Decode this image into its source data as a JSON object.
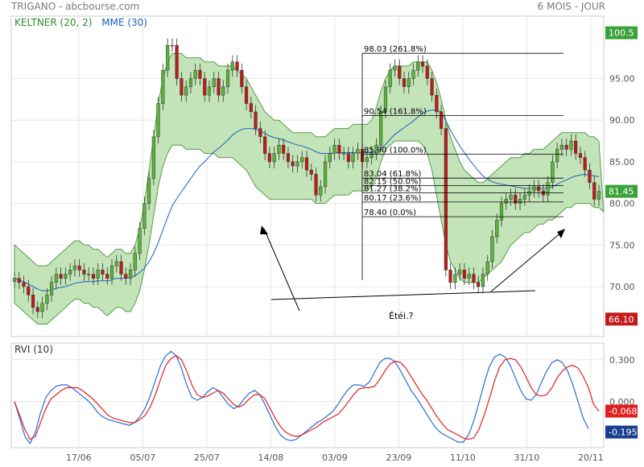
{
  "header": {
    "title": "TRIGANO - abcbourse.com",
    "period": "6 MOIS - JOUR"
  },
  "legend": {
    "keltner": "KELTNER (20, 2)",
    "mme": "MME (30)",
    "keltner_color": "#2e8b2e",
    "mme_color": "#1f5fbf"
  },
  "colors": {
    "band_fill": "#b9dfac",
    "band_edge": "#5a9a4a",
    "candle_up": "#5ab53a",
    "candle_down": "#c21a1a",
    "grid": "#e6e6e6",
    "rvi_blue": "#2a6bd6",
    "rvi_red": "#e02020"
  },
  "price_axis": {
    "ticks": [
      "100.5",
      "95.00",
      "90.00",
      "85.00",
      "81.45",
      "80.00",
      "75.00",
      "70.00",
      "66.10"
    ],
    "tick_values": [
      95,
      90,
      85,
      80,
      75,
      70
    ],
    "ylim": [
      64.0,
      102.5
    ],
    "high_label": "100.5",
    "last_label": "81.45",
    "low_label": "66.10"
  },
  "x_axis": {
    "labels": [
      "17/06",
      "05/07",
      "25/07",
      "14/08",
      "03/09",
      "23/09",
      "11/10",
      "31/10",
      "20/11"
    ]
  },
  "fibonacci": {
    "levels": [
      {
        "label": "98.03",
        "pct": "(261.8%)",
        "value": 98.03
      },
      {
        "label": "90.54",
        "pct": "(161.8%)",
        "value": 90.54
      },
      {
        "label": "85.90",
        "pct": "(100.0%)",
        "value": 85.9
      },
      {
        "label": "83.04",
        "pct": "(61.8%)",
        "value": 83.04
      },
      {
        "label": "82.15",
        "pct": "(50.0%)",
        "value": 82.15
      },
      {
        "label": "81.27",
        "pct": "(38.2%)",
        "value": 81.27
      },
      {
        "label": "80.17",
        "pct": "(23.6%)",
        "value": 80.17
      },
      {
        "label": "78.40",
        "pct": "(0.0%)",
        "value": 78.4
      }
    ]
  },
  "annotation": {
    "text": "Étéi.?"
  },
  "rvi": {
    "title": "RVI (10)",
    "ticks": [
      "0.300",
      "0.000"
    ],
    "tick_values": [
      0.3,
      0.0
    ],
    "last_red": "-0.068",
    "last_blue": "-0.195",
    "ylim": [
      -0.33,
      0.42
    ]
  },
  "chart_data": {
    "type": "candlestick",
    "title": "TRIGANO - abcbourse.com",
    "period": "6 MOIS - JOUR",
    "x_labels": [
      "17/06",
      "05/07",
      "25/07",
      "14/08",
      "03/09",
      "23/09",
      "11/10",
      "31/10",
      "20/11"
    ],
    "close": [
      71,
      70.5,
      70,
      69,
      67.5,
      67,
      68,
      69,
      70.5,
      71.5,
      71,
      71.5,
      72,
      72.5,
      72,
      71.5,
      71.5,
      71,
      72,
      71.5,
      71,
      72.5,
      73,
      71.5,
      71,
      72,
      74,
      77,
      80,
      83,
      88,
      92,
      96,
      99,
      99,
      95,
      93,
      94,
      95,
      96,
      95,
      93,
      94,
      95,
      93,
      94,
      96,
      97,
      96,
      94,
      92,
      91,
      89,
      88,
      86,
      85,
      86,
      87,
      86,
      85,
      84.5,
      85,
      85.5,
      84,
      83.5,
      81,
      82,
      85,
      86,
      87,
      86,
      86,
      85,
      86,
      86.5,
      85,
      85.5,
      86,
      87,
      91,
      94,
      96,
      96.5,
      95,
      94,
      95,
      96,
      97,
      96.5,
      95,
      93,
      91,
      89,
      72,
      70.5,
      71.5,
      72,
      71,
      71.5,
      70.5,
      70,
      71.5,
      73,
      76,
      78,
      80,
      80.5,
      81,
      80,
      80.5,
      81,
      81.5,
      82,
      81.5,
      81,
      82.5,
      85,
      86.5,
      87,
      86.5,
      87.5,
      86,
      85.5,
      84,
      82.5,
      80.5,
      81.45
    ],
    "keltner_upper": [
      75,
      74.5,
      74,
      73.5,
      73,
      72.5,
      72.5,
      72.5,
      73,
      73.5,
      74,
      74.5,
      75,
      75.5,
      75.5,
      75,
      75,
      74.5,
      74.5,
      74,
      73.5,
      74,
      74.5,
      74.5,
      74,
      74,
      75,
      77,
      80,
      84,
      88,
      92,
      95,
      97,
      98,
      98,
      98,
      97.5,
      97.5,
      97.5,
      97.5,
      97,
      97,
      97,
      96.5,
      96.5,
      96.5,
      96.5,
      96,
      95.5,
      95,
      94,
      93,
      92,
      91,
      90.5,
      90,
      90,
      89.5,
      89,
      88.5,
      88.5,
      88.5,
      88.5,
      88.5,
      88,
      88,
      88,
      88.5,
      89,
      89,
      89,
      89,
      89.5,
      89.5,
      89.5,
      89.5,
      90,
      91.5,
      93.5,
      95,
      96,
      96.5,
      96.5,
      96.5,
      96.5,
      97,
      97,
      97,
      97,
      96,
      94.5,
      92.5,
      90,
      88,
      86.5,
      85,
      84,
      83.5,
      83,
      82.5,
      82.5,
      83,
      83.5,
      84,
      84.5,
      85,
      85.5,
      85.5,
      85.5,
      86,
      86,
      86.5,
      86.5,
      86.5,
      87,
      87.5,
      88,
      88.5,
      88.5,
      88.5,
      88.5,
      88.5,
      88.5,
      88,
      88,
      87.5
    ],
    "keltner_lower": [
      68,
      67.5,
      67,
      66.5,
      66,
      65.5,
      65.5,
      65.5,
      66,
      66.5,
      67,
      67.5,
      68,
      68.5,
      68.5,
      68,
      68,
      67.5,
      67.5,
      67,
      66.5,
      67,
      67.5,
      67.5,
      67,
      67,
      68,
      69.5,
      72,
      75,
      78.5,
      82,
      84.5,
      86,
      87,
      87,
      87,
      86.5,
      86.5,
      86.5,
      86.5,
      86,
      86,
      86,
      85.5,
      85.5,
      85.5,
      85.5,
      85,
      84.5,
      84,
      83,
      82,
      81.5,
      81,
      80.5,
      80.5,
      80.5,
      80.5,
      80.5,
      80.5,
      80.5,
      80.5,
      80.5,
      80.5,
      80,
      80,
      80,
      80.5,
      81,
      81,
      81,
      81,
      81.5,
      81.5,
      81.5,
      81.5,
      82,
      83,
      85,
      86.5,
      87,
      87.5,
      87.5,
      87.5,
      87.5,
      87.5,
      87.5,
      87,
      86,
      84,
      81,
      78,
      75,
      73,
      72,
      71,
      70.5,
      70.5,
      70.5,
      70.5,
      71,
      71.5,
      72,
      72.5,
      73,
      74,
      75,
      75.5,
      76,
      76.5,
      76.5,
      77,
      77.5,
      77.5,
      78,
      78,
      78.5,
      79,
      79.5,
      79.5,
      80,
      80,
      80,
      80,
      79.5,
      79.5,
      79
    ],
    "mme": [
      71,
      70.8,
      70.6,
      70.3,
      70,
      69.7,
      69.5,
      69.5,
      69.6,
      69.8,
      69.9,
      70,
      70.2,
      70.4,
      70.5,
      70.6,
      70.6,
      70.6,
      70.7,
      70.7,
      70.7,
      70.8,
      71,
      71,
      71,
      71.1,
      71.3,
      71.7,
      72.2,
      73,
      74,
      75.3,
      76.8,
      78.3,
      79.7,
      80.6,
      81.4,
      82.2,
      83,
      83.8,
      84.5,
      85,
      85.6,
      86.2,
      86.6,
      87.1,
      87.6,
      88.2,
      88.6,
      88.9,
      89,
      89,
      88.9,
      88.7,
      88.4,
      88.1,
      87.9,
      87.8,
      87.6,
      87.4,
      87.2,
      87,
      86.9,
      86.7,
      86.5,
      86.2,
      86,
      86,
      86,
      86.1,
      86.1,
      86.1,
      86.1,
      86.1,
      86.1,
      86.1,
      86.1,
      86.1,
      86.2,
      86.6,
      87.1,
      87.7,
      88.3,
      88.7,
      89.1,
      89.5,
      89.9,
      90.4,
      90.8,
      91.1,
      91.2,
      91.2,
      91,
      89.9,
      88.8,
      87.8,
      86.9,
      86.1,
      85.3,
      84.6,
      83.9,
      83.3,
      82.9,
      82.6,
      82.4,
      82.3,
      82.2,
      82.1,
      82,
      81.9,
      81.8,
      81.8,
      81.8,
      81.8,
      81.8,
      81.8,
      82,
      82.3,
      82.6,
      82.8,
      83.1,
      83.3,
      83.4,
      83.5,
      83.4,
      83.3,
      83.2
    ],
    "rvi_red": [
      0,
      -0.1,
      -0.2,
      -0.27,
      -0.25,
      -0.15,
      -0.05,
      0.02,
      0.05,
      0.08,
      0.1,
      0.1,
      0.1,
      0.08,
      0.05,
      0.02,
      -0.02,
      -0.06,
      -0.1,
      -0.12,
      -0.13,
      -0.14,
      -0.15,
      -0.15,
      -0.13,
      -0.1,
      -0.04,
      0.05,
      0.16,
      0.26,
      0.31,
      0.33,
      0.3,
      0.22,
      0.12,
      0.05,
      0.03,
      0.04,
      0.06,
      0.08,
      0.06,
      0.02,
      -0.02,
      -0.04,
      -0.02,
      0.02,
      0.05,
      0.05,
      0.02,
      -0.05,
      -0.12,
      -0.18,
      -0.22,
      -0.24,
      -0.25,
      -0.24,
      -0.22,
      -0.2,
      -0.18,
      -0.15,
      -0.13,
      -0.11,
      -0.09,
      -0.05,
      0,
      0.05,
      0.09,
      0.1,
      0.1,
      0.11,
      0.16,
      0.22,
      0.27,
      0.29,
      0.28,
      0.24,
      0.18,
      0.12,
      0.06,
      0.01,
      -0.05,
      -0.11,
      -0.16,
      -0.2,
      -0.22,
      -0.24,
      -0.26,
      -0.27,
      -0.26,
      -0.2,
      -0.1,
      0.02,
      0.15,
      0.25,
      0.3,
      0.31,
      0.3,
      0.25,
      0.18,
      0.1,
      0.05,
      0.04,
      0.05,
      0.1,
      0.17,
      0.22,
      0.25,
      0.26,
      0.24,
      0.18,
      0.1,
      -0.02,
      -0.068
    ],
    "rvi_blue": [
      0,
      -0.12,
      -0.25,
      -0.3,
      -0.22,
      -0.08,
      0.03,
      0.08,
      0.11,
      0.12,
      0.12,
      0.1,
      0.07,
      0.04,
      0.01,
      -0.03,
      -0.08,
      -0.11,
      -0.13,
      -0.14,
      -0.15,
      -0.16,
      -0.17,
      -0.15,
      -0.11,
      -0.05,
      0.04,
      0.15,
      0.26,
      0.33,
      0.36,
      0.33,
      0.24,
      0.12,
      0.03,
      0.01,
      0.03,
      0.07,
      0.1,
      0.08,
      0.03,
      -0.02,
      -0.05,
      -0.03,
      0.02,
      0.06,
      0.08,
      0.05,
      -0.02,
      -0.1,
      -0.18,
      -0.24,
      -0.27,
      -0.28,
      -0.27,
      -0.24,
      -0.21,
      -0.18,
      -0.15,
      -0.13,
      -0.1,
      -0.07,
      -0.02,
      0.04,
      0.09,
      0.12,
      0.12,
      0.11,
      0.14,
      0.21,
      0.28,
      0.31,
      0.31,
      0.28,
      0.22,
      0.15,
      0.08,
      0.03,
      -0.03,
      -0.09,
      -0.15,
      -0.2,
      -0.23,
      -0.25,
      -0.27,
      -0.29,
      -0.29,
      -0.24,
      -0.14,
      -0.01,
      0.13,
      0.25,
      0.32,
      0.34,
      0.32,
      0.26,
      0.17,
      0.08,
      0.02,
      0.01,
      0.05,
      0.14,
      0.22,
      0.28,
      0.3,
      0.28,
      0.22,
      0.12,
      0,
      -0.12,
      -0.195
    ]
  }
}
